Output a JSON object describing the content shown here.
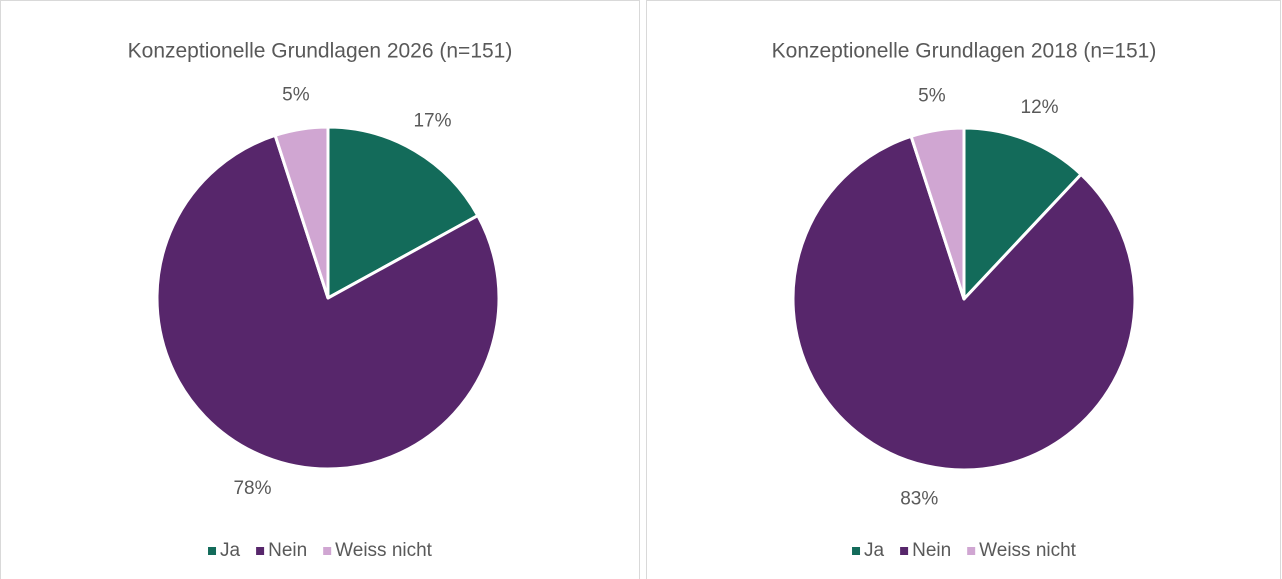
{
  "chart_data": [
    {
      "type": "pie",
      "title": "Konzeptionelle Grundlagen 2026 (n=151)",
      "categories": [
        "Ja",
        "Nein",
        "Weiss nicht"
      ],
      "values": [
        17,
        78,
        5
      ],
      "value_labels": [
        "17%",
        "78%",
        "5%"
      ],
      "colors": [
        "#136b5a",
        "#57266b",
        "#d0a6d2"
      ],
      "legend": "bottom"
    },
    {
      "type": "pie",
      "title": "Konzeptionelle Grundlagen 2018 (n=151)",
      "categories": [
        "Ja",
        "Nein",
        "Weiss nicht"
      ],
      "values": [
        12,
        83,
        5
      ],
      "value_labels": [
        "12%",
        "83%",
        "5%"
      ],
      "colors": [
        "#136b5a",
        "#57266b",
        "#d0a6d2"
      ],
      "legend": "bottom"
    }
  ]
}
